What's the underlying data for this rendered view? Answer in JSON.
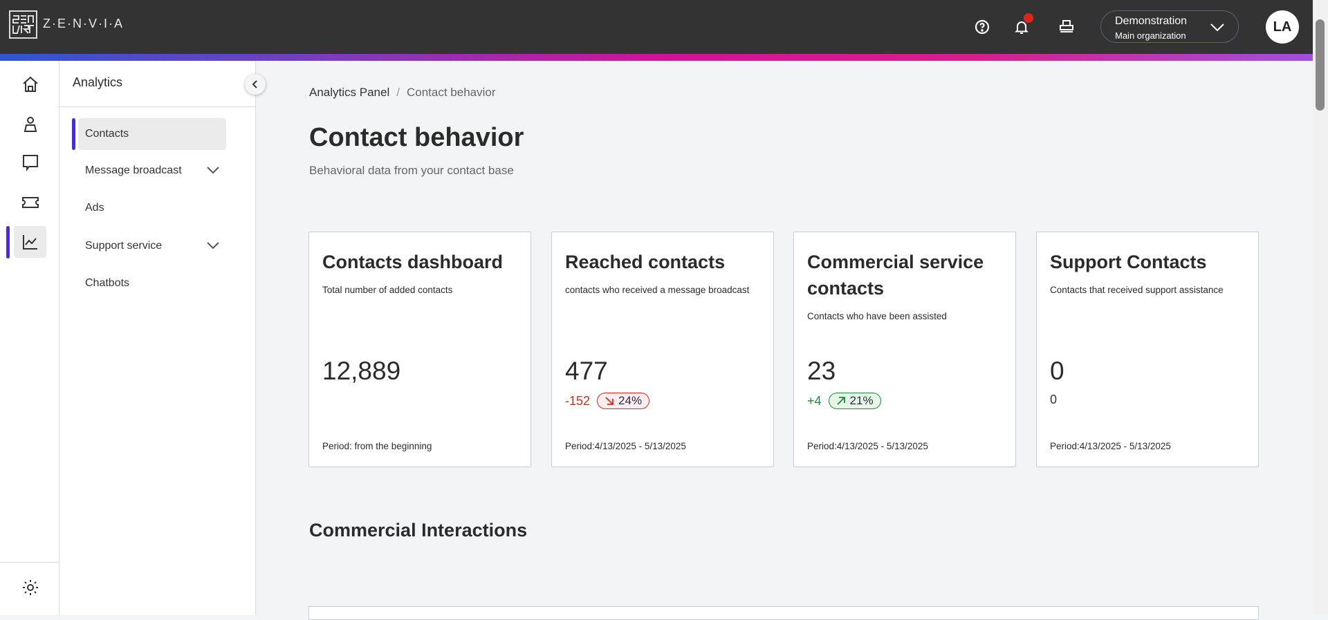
{
  "header": {
    "logo_text": "Z·E·N·V·I·A",
    "org_name": "Demonstration",
    "org_sub": "Main organization",
    "avatar": "LA",
    "icons": [
      "help-icon",
      "bell-icon",
      "printer-icon",
      "chevron-down-icon"
    ],
    "notification_color": "#e0261b"
  },
  "rail": {
    "items": [
      "home-icon",
      "user-icon",
      "chat-icon",
      "ticket-icon",
      "chart-icon",
      "settings-icon"
    ],
    "active": "chart-icon",
    "accent": "#4b2be0"
  },
  "sidebar": {
    "title": "Analytics",
    "items": [
      {
        "label": "Contacts",
        "active": true
      },
      {
        "label": "Message broadcast",
        "expandable": true
      },
      {
        "label": "Ads"
      },
      {
        "label": "Support service",
        "expandable": true
      },
      {
        "label": "Chatbots"
      }
    ]
  },
  "breadcrumb": {
    "parent": "Analytics Panel",
    "separator": "/",
    "current": "Contact behavior"
  },
  "page": {
    "title": "Contact behavior",
    "subtitle": "Behavioral data from your contact base"
  },
  "cards": [
    {
      "title": "Contacts dashboard",
      "desc": "Total number of added contacts",
      "value": "12,889",
      "period": "Period: from the beginning"
    },
    {
      "title": "Reached contacts",
      "desc": "contacts who received a message broadcast",
      "value": "477",
      "delta": "-152",
      "pct": "24%",
      "trend": "down",
      "period": "Period:4/13/2025 - 5/13/2025"
    },
    {
      "title": "Commercial service contacts",
      "desc": "Contacts who have been assisted",
      "value": "23",
      "delta": "+4",
      "pct": "21%",
      "trend": "up",
      "period": "Period:4/13/2025 - 5/13/2025"
    },
    {
      "title": "Support Contacts",
      "desc": "Contacts that received support assistance",
      "value": "0",
      "delta": "0",
      "period": "Period:4/13/2025 - 5/13/2025"
    }
  ],
  "colors": {
    "negative": "#e0261b",
    "positive": "#1e8a3a"
  },
  "section": {
    "title": "Commercial Interactions"
  }
}
